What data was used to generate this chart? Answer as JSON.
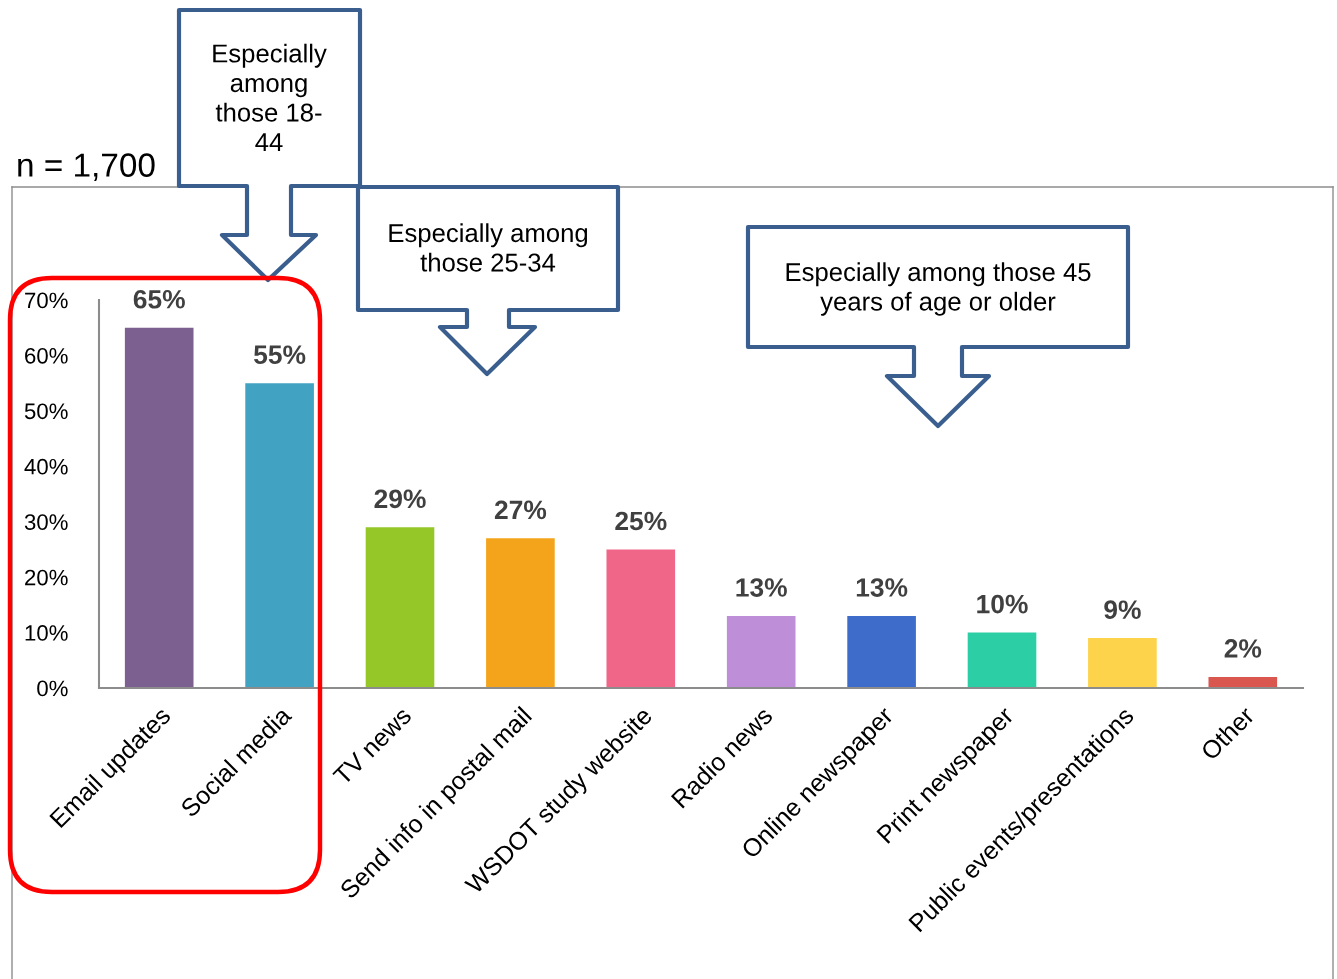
{
  "chart_data": {
    "type": "bar",
    "categories": [
      "Email updates",
      "Social media",
      "TV news",
      "Send info in postal mail",
      "WSDOT study website",
      "Radio news",
      "Online newspaper",
      "Print newspaper",
      "Public events/presentations",
      "Other"
    ],
    "values": [
      65,
      55,
      29,
      27,
      25,
      13,
      13,
      10,
      9,
      2
    ],
    "colors": [
      "#7c6190",
      "#41a2c2",
      "#96c728",
      "#f4a41a",
      "#f06688",
      "#be8fd8",
      "#3d6ccb",
      "#2ccfa5",
      "#fcd34a",
      "#d9574f"
    ],
    "value_labels": [
      "65%",
      "55%",
      "29%",
      "27%",
      "25%",
      "13%",
      "13%",
      "10%",
      "9%",
      "2%"
    ],
    "ylim": [
      0,
      70
    ],
    "yticks": [
      {
        "value": 0,
        "label": "0%"
      },
      {
        "value": 10,
        "label": "10%"
      },
      {
        "value": 20,
        "label": "20%"
      },
      {
        "value": 30,
        "label": "30%"
      },
      {
        "value": 40,
        "label": "40%"
      },
      {
        "value": 50,
        "label": "50%"
      },
      {
        "value": 60,
        "label": "60%"
      },
      {
        "value": 70,
        "label": "70%"
      }
    ],
    "annotations": [
      "Especially\namong\nthose 18-\n44",
      "n = 1,700",
      "Especially among\nthose 25-34",
      "Especially among those 45\nyears of age or older"
    ]
  }
}
